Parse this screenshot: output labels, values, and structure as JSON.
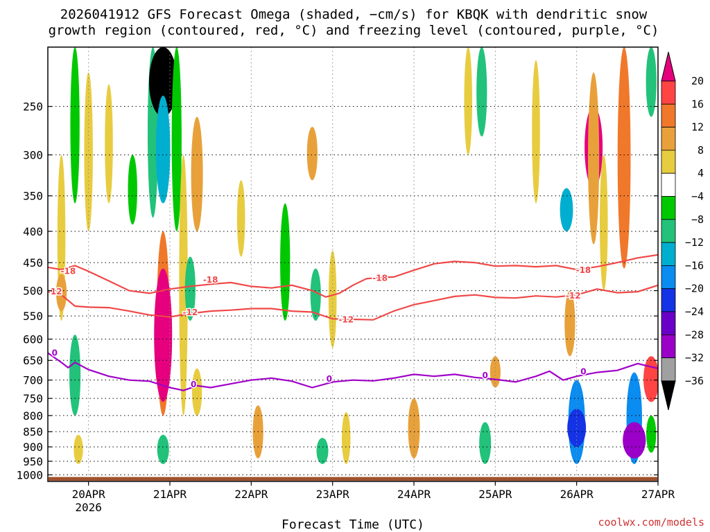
{
  "chart_data": {
    "type": "heatmap",
    "title_line1": "2026041912 GFS Forecast Omega (shaded, −cm/s) for KBQK with dendritic snow",
    "title_line2": "growth region (contoured, red, °C) and freezing level (contoured, purple, °C)",
    "xlabel": "Forecast Time (UTC)",
    "credit": "coolwx.com/models",
    "x_year_label": "2026",
    "xlim_hours": [
      -12,
      168
    ],
    "x_ticks": [
      {
        "label": "20APR",
        "hour": 0
      },
      {
        "label": "21APR",
        "hour": 24
      },
      {
        "label": "22APR",
        "hour": 48
      },
      {
        "label": "23APR",
        "hour": 72
      },
      {
        "label": "24APR",
        "hour": 96
      },
      {
        "label": "25APR",
        "hour": 120
      },
      {
        "label": "26APR",
        "hour": 144
      },
      {
        "label": "27APR",
        "hour": 168
      }
    ],
    "y_ticks": [
      250,
      300,
      350,
      400,
      450,
      500,
      550,
      600,
      650,
      700,
      750,
      800,
      850,
      900,
      950,
      1000
    ],
    "ylim_hpa": [
      200,
      1025
    ],
    "ground_hpa": 1008,
    "colorbar_labels": [
      "20",
      "16",
      "12",
      "8",
      "4",
      "−4",
      "−8",
      "−12",
      "−16",
      "−20",
      "−24",
      "−28",
      "−32",
      "−36"
    ],
    "colorbar_colors": [
      "#ff4444",
      "#f0782a",
      "#e8a13a",
      "#e8cc40",
      "#ffffff",
      "#00c800",
      "#22c27a",
      "#00aed0",
      "#0a8cf0",
      "#1432e6",
      "#6a00c8",
      "#9a00c8",
      "#a0a0a0"
    ],
    "colorbar_top_color": "#e6007e",
    "colorbar_bottom_color": "#000000",
    "omega_cells": [
      {
        "hour": -8,
        "p1": 300,
        "p2": 560,
        "value": 4
      },
      {
        "hour": -8,
        "p1": 470,
        "p2": 540,
        "value": 8
      },
      {
        "hour": -4,
        "p1": 200,
        "p2": 360,
        "value": -6
      },
      {
        "hour": -4,
        "p1": 590,
        "p2": 800,
        "value": -9
      },
      {
        "hour": -3,
        "p1": 860,
        "p2": 960,
        "value": 6
      },
      {
        "hour": 0,
        "p1": 220,
        "p2": 400,
        "value": 5
      },
      {
        "hour": 6,
        "p1": 230,
        "p2": 360,
        "value": 4
      },
      {
        "hour": 13,
        "p1": 300,
        "p2": 390,
        "value": -6
      },
      {
        "hour": 19,
        "p1": 200,
        "p2": 380,
        "value": -8
      },
      {
        "hour": 22,
        "p1": 200,
        "p2": 260,
        "value": -36
      },
      {
        "hour": 22,
        "p1": 240,
        "p2": 360,
        "value": -14
      },
      {
        "hour": 22,
        "p1": 400,
        "p2": 800,
        "value": 12
      },
      {
        "hour": 22,
        "p1": 460,
        "p2": 760,
        "value": 20
      },
      {
        "hour": 22,
        "p1": 860,
        "p2": 960,
        "value": -10
      },
      {
        "hour": 26,
        "p1": 200,
        "p2": 400,
        "value": -7
      },
      {
        "hour": 28,
        "p1": 300,
        "p2": 800,
        "value": 5
      },
      {
        "hour": 30,
        "p1": 440,
        "p2": 560,
        "value": -8
      },
      {
        "hour": 32,
        "p1": 260,
        "p2": 400,
        "value": 10
      },
      {
        "hour": 32,
        "p1": 670,
        "p2": 800,
        "value": 7
      },
      {
        "hour": 45,
        "p1": 330,
        "p2": 440,
        "value": 4
      },
      {
        "hour": 50,
        "p1": 770,
        "p2": 940,
        "value": 8
      },
      {
        "hour": 58,
        "p1": 360,
        "p2": 560,
        "value": -7
      },
      {
        "hour": 66,
        "p1": 270,
        "p2": 330,
        "value": 8
      },
      {
        "hour": 67,
        "p1": 460,
        "p2": 560,
        "value": -8
      },
      {
        "hour": 69,
        "p1": 870,
        "p2": 960,
        "value": -10
      },
      {
        "hour": 72,
        "p1": 430,
        "p2": 620,
        "value": 4
      },
      {
        "hour": 76,
        "p1": 790,
        "p2": 960,
        "value": 5
      },
      {
        "hour": 96,
        "p1": 750,
        "p2": 940,
        "value": 10
      },
      {
        "hour": 112,
        "p1": 200,
        "p2": 300,
        "value": 4
      },
      {
        "hour": 116,
        "p1": 200,
        "p2": 280,
        "value": -8
      },
      {
        "hour": 117,
        "p1": 820,
        "p2": 960,
        "value": -10
      },
      {
        "hour": 120,
        "p1": 640,
        "p2": 720,
        "value": 8
      },
      {
        "hour": 132,
        "p1": 210,
        "p2": 360,
        "value": 4
      },
      {
        "hour": 141,
        "p1": 340,
        "p2": 400,
        "value": -12
      },
      {
        "hour": 142,
        "p1": 500,
        "p2": 640,
        "value": 8
      },
      {
        "hour": 144,
        "p1": 700,
        "p2": 960,
        "value": -18
      },
      {
        "hour": 144,
        "p1": 780,
        "p2": 900,
        "value": -21
      },
      {
        "hour": 149,
        "p1": 250,
        "p2": 340,
        "value": 20
      },
      {
        "hour": 149,
        "p1": 220,
        "p2": 420,
        "value": 9
      },
      {
        "hour": 152,
        "p1": 300,
        "p2": 500,
        "value": 4
      },
      {
        "hour": 158,
        "p1": 200,
        "p2": 460,
        "value": 12
      },
      {
        "hour": 161,
        "p1": 680,
        "p2": 960,
        "value": -16
      },
      {
        "hour": 161,
        "p1": 820,
        "p2": 940,
        "value": -28
      },
      {
        "hour": 166,
        "p1": 200,
        "p2": 260,
        "value": -8
      },
      {
        "hour": 166,
        "p1": 640,
        "p2": 760,
        "value": 16
      },
      {
        "hour": 166,
        "p1": 800,
        "p2": 920,
        "value": -7
      }
    ],
    "contours": [
      {
        "name": "-18",
        "color": "#f04848",
        "labels": [
          {
            "hour": -6,
            "p": 465
          },
          {
            "hour": 36,
            "p": 480
          },
          {
            "hour": 86,
            "p": 477
          },
          {
            "hour": 146,
            "p": 463
          }
        ],
        "points": [
          [
            -12,
            458
          ],
          [
            -8,
            462
          ],
          [
            -4,
            455
          ],
          [
            0,
            465
          ],
          [
            6,
            482
          ],
          [
            12,
            500
          ],
          [
            18,
            505
          ],
          [
            24,
            497
          ],
          [
            30,
            492
          ],
          [
            36,
            488
          ],
          [
            42,
            485
          ],
          [
            48,
            492
          ],
          [
            54,
            495
          ],
          [
            60,
            490
          ],
          [
            66,
            500
          ],
          [
            70,
            512
          ],
          [
            74,
            505
          ],
          [
            78,
            490
          ],
          [
            82,
            478
          ],
          [
            86,
            476
          ],
          [
            90,
            475
          ],
          [
            96,
            463
          ],
          [
            102,
            452
          ],
          [
            108,
            448
          ],
          [
            114,
            450
          ],
          [
            120,
            456
          ],
          [
            126,
            455
          ],
          [
            132,
            457
          ],
          [
            138,
            455
          ],
          [
            144,
            462
          ],
          [
            150,
            457
          ],
          [
            156,
            450
          ],
          [
            162,
            442
          ],
          [
            168,
            437
          ]
        ]
      },
      {
        "name": "-12",
        "color": "#f04848",
        "labels": [
          {
            "hour": -10,
            "p": 502
          },
          {
            "hour": 30,
            "p": 543
          },
          {
            "hour": 76,
            "p": 558
          },
          {
            "hour": 143,
            "p": 510
          }
        ],
        "points": [
          [
            -12,
            500
          ],
          [
            -8,
            508
          ],
          [
            -4,
            530
          ],
          [
            0,
            532
          ],
          [
            6,
            533
          ],
          [
            12,
            540
          ],
          [
            18,
            548
          ],
          [
            24,
            552
          ],
          [
            30,
            545
          ],
          [
            36,
            540
          ],
          [
            42,
            538
          ],
          [
            48,
            535
          ],
          [
            54,
            535
          ],
          [
            60,
            540
          ],
          [
            66,
            542
          ],
          [
            72,
            556
          ],
          [
            78,
            557
          ],
          [
            84,
            558
          ],
          [
            90,
            540
          ],
          [
            96,
            527
          ],
          [
            102,
            519
          ],
          [
            108,
            511
          ],
          [
            114,
            508
          ],
          [
            120,
            513
          ],
          [
            126,
            514
          ],
          [
            132,
            510
          ],
          [
            138,
            512
          ],
          [
            144,
            508
          ],
          [
            150,
            497
          ],
          [
            156,
            504
          ],
          [
            162,
            502
          ],
          [
            168,
            490
          ]
        ]
      },
      {
        "name": "0",
        "color": "#a000c8",
        "labels": [
          {
            "hour": -10,
            "p": 632
          },
          {
            "hour": 31,
            "p": 712
          },
          {
            "hour": 71,
            "p": 697
          },
          {
            "hour": 117,
            "p": 688
          },
          {
            "hour": 146,
            "p": 678
          }
        ],
        "points": [
          [
            -12,
            632
          ],
          [
            -8,
            655
          ],
          [
            -6,
            668
          ],
          [
            -4,
            655
          ],
          [
            0,
            673
          ],
          [
            6,
            690
          ],
          [
            12,
            700
          ],
          [
            18,
            703
          ],
          [
            24,
            720
          ],
          [
            28,
            728
          ],
          [
            32,
            715
          ],
          [
            36,
            720
          ],
          [
            42,
            710
          ],
          [
            48,
            700
          ],
          [
            54,
            695
          ],
          [
            60,
            703
          ],
          [
            66,
            720
          ],
          [
            72,
            705
          ],
          [
            78,
            700
          ],
          [
            84,
            702
          ],
          [
            90,
            695
          ],
          [
            96,
            685
          ],
          [
            102,
            690
          ],
          [
            108,
            685
          ],
          [
            114,
            693
          ],
          [
            120,
            698
          ],
          [
            126,
            705
          ],
          [
            132,
            690
          ],
          [
            136,
            677
          ],
          [
            140,
            700
          ],
          [
            144,
            690
          ],
          [
            150,
            680
          ],
          [
            156,
            675
          ],
          [
            162,
            658
          ],
          [
            168,
            670
          ]
        ]
      }
    ]
  }
}
